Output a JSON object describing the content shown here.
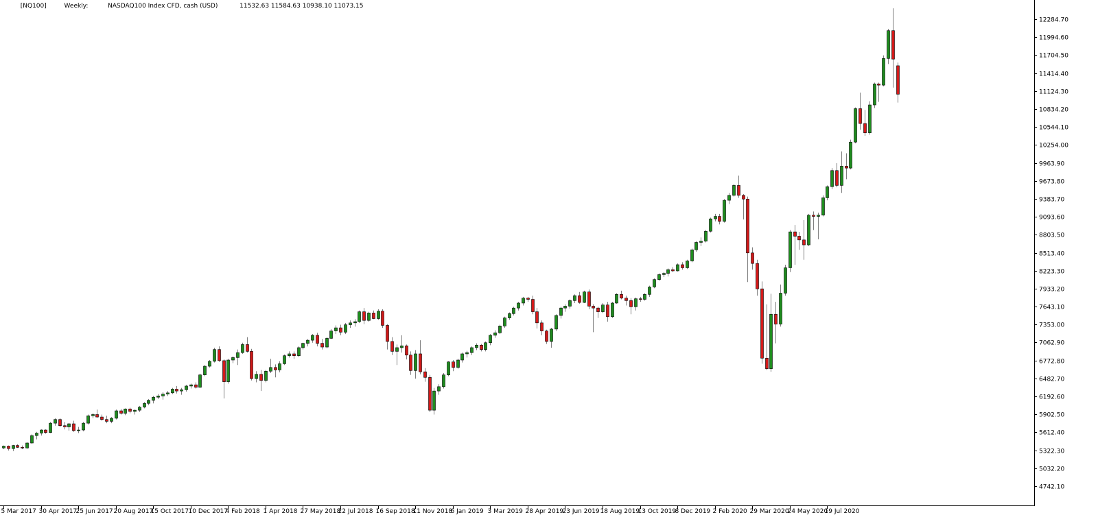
{
  "header": {
    "symbol": "[NQ100]",
    "timeframe": "Weekly:",
    "description": "NASDAQ100 Index CFD, cash (USD)",
    "ohlc": "11532.63 11584.63 10938.10 11073.15"
  },
  "colors": {
    "bull_fill": "#1e8c1e",
    "bear_fill": "#d21919",
    "candle_outline": "#000000",
    "wick": "#7f7f7f",
    "axis": "#000000",
    "background": "#ffffff"
  },
  "chart_data": {
    "type": "candlestick",
    "title": "",
    "xlabel": "",
    "ylabel": "",
    "grid": false,
    "ylim": [
      4600,
      12450
    ],
    "y_ticks": [
      "12284.70",
      "11994.60",
      "11704.50",
      "11414.40",
      "11124.30",
      "10834.20",
      "10544.10",
      "10254.00",
      "9963.90",
      "9673.80",
      "9383.70",
      "9093.60",
      "8803.50",
      "8513.40",
      "8223.30",
      "7933.20",
      "7643.10",
      "7353.00",
      "7062.90",
      "6772.80",
      "6482.70",
      "6192.60",
      "5902.50",
      "5612.40",
      "5322.30",
      "5032.20",
      "4742.10"
    ],
    "x_ticks": [
      {
        "label": "5 Mar 2017",
        "index": 0
      },
      {
        "label": "30 Apr 2017",
        "index": 8
      },
      {
        "label": "25 Jun 2017",
        "index": 16
      },
      {
        "label": "20 Aug 2017",
        "index": 24
      },
      {
        "label": "15 Oct 2017",
        "index": 32
      },
      {
        "label": "10 Dec 2017",
        "index": 40
      },
      {
        "label": "4 Feb 2018",
        "index": 48
      },
      {
        "label": "1 Apr 2018",
        "index": 56
      },
      {
        "label": "27 May 2018",
        "index": 64
      },
      {
        "label": "22 Jul 2018",
        "index": 72
      },
      {
        "label": "16 Sep 2018",
        "index": 80
      },
      {
        "label": "11 Nov 2018",
        "index": 88
      },
      {
        "label": "6 Jan 2019",
        "index": 96
      },
      {
        "label": "3 Mar 2019",
        "index": 104
      },
      {
        "label": "28 Apr 2019",
        "index": 112
      },
      {
        "label": "23 Jun 2019",
        "index": 120
      },
      {
        "label": "18 Aug 2019",
        "index": 128
      },
      {
        "label": "13 Oct 2019",
        "index": 136
      },
      {
        "label": "8 Dec 2019",
        "index": 144
      },
      {
        "label": "2 Feb 2020",
        "index": 152
      },
      {
        "label": "29 Mar 2020",
        "index": 160
      },
      {
        "label": "24 May 2020",
        "index": 168
      },
      {
        "label": "19 Jul 2020",
        "index": 176
      }
    ],
    "candles": [
      [
        5360,
        5400,
        5340,
        5390
      ],
      [
        5390,
        5400,
        5320,
        5350
      ],
      [
        5350,
        5410,
        5310,
        5400
      ],
      [
        5400,
        5420,
        5360,
        5370
      ],
      [
        5370,
        5400,
        5340,
        5360
      ],
      [
        5360,
        5450,
        5350,
        5440
      ],
      [
        5440,
        5580,
        5430,
        5560
      ],
      [
        5560,
        5620,
        5500,
        5600
      ],
      [
        5600,
        5660,
        5560,
        5650
      ],
      [
        5650,
        5660,
        5590,
        5610
      ],
      [
        5610,
        5780,
        5600,
        5760
      ],
      [
        5760,
        5840,
        5720,
        5820
      ],
      [
        5820,
        5840,
        5700,
        5720
      ],
      [
        5720,
        5780,
        5660,
        5700
      ],
      [
        5700,
        5760,
        5640,
        5750
      ],
      [
        5750,
        5800,
        5620,
        5640
      ],
      [
        5640,
        5700,
        5600,
        5650
      ],
      [
        5650,
        5780,
        5630,
        5760
      ],
      [
        5760,
        5900,
        5740,
        5880
      ],
      [
        5880,
        5920,
        5840,
        5900
      ],
      [
        5900,
        5980,
        5850,
        5860
      ],
      [
        5860,
        5900,
        5800,
        5820
      ],
      [
        5820,
        5880,
        5760,
        5790
      ],
      [
        5790,
        5860,
        5760,
        5840
      ],
      [
        5840,
        5980,
        5820,
        5960
      ],
      [
        5960,
        5990,
        5900,
        5920
      ],
      [
        5920,
        6000,
        5890,
        5990
      ],
      [
        5990,
        6010,
        5920,
        5950
      ],
      [
        5950,
        5980,
        5900,
        5970
      ],
      [
        5970,
        6040,
        5940,
        6020
      ],
      [
        6020,
        6100,
        6000,
        6080
      ],
      [
        6080,
        6150,
        6050,
        6130
      ],
      [
        6130,
        6200,
        6080,
        6180
      ],
      [
        6180,
        6230,
        6150,
        6200
      ],
      [
        6200,
        6260,
        6140,
        6230
      ],
      [
        6230,
        6280,
        6200,
        6250
      ],
      [
        6250,
        6330,
        6230,
        6310
      ],
      [
        6310,
        6360,
        6240,
        6280
      ],
      [
        6280,
        6330,
        6220,
        6300
      ],
      [
        6300,
        6380,
        6270,
        6360
      ],
      [
        6360,
        6400,
        6320,
        6380
      ],
      [
        6380,
        6420,
        6320,
        6340
      ],
      [
        6340,
        6560,
        6330,
        6540
      ],
      [
        6540,
        6700,
        6520,
        6680
      ],
      [
        6680,
        6780,
        6660,
        6760
      ],
      [
        6760,
        6980,
        6740,
        6950
      ],
      [
        6950,
        7000,
        6750,
        6770
      ],
      [
        6770,
        6790,
        6160,
        6430
      ],
      [
        6430,
        6800,
        6400,
        6780
      ],
      [
        6780,
        6840,
        6730,
        6820
      ],
      [
        6820,
        6950,
        6700,
        6900
      ],
      [
        6900,
        7060,
        6880,
        7030
      ],
      [
        7030,
        7150,
        6900,
        6920
      ],
      [
        6920,
        6960,
        6450,
        6480
      ],
      [
        6480,
        6600,
        6420,
        6550
      ],
      [
        6550,
        6620,
        6280,
        6450
      ],
      [
        6450,
        6620,
        6420,
        6600
      ],
      [
        6600,
        6800,
        6570,
        6660
      ],
      [
        6660,
        6710,
        6500,
        6620
      ],
      [
        6620,
        6760,
        6580,
        6720
      ],
      [
        6720,
        6870,
        6700,
        6850
      ],
      [
        6850,
        6920,
        6820,
        6880
      ],
      [
        6880,
        6920,
        6800,
        6850
      ],
      [
        6850,
        7000,
        6830,
        6980
      ],
      [
        6980,
        7060,
        6950,
        7050
      ],
      [
        7050,
        7120,
        7000,
        7100
      ],
      [
        7100,
        7200,
        7060,
        7180
      ],
      [
        7180,
        7220,
        7000,
        7050
      ],
      [
        7050,
        7120,
        6950,
        6990
      ],
      [
        6990,
        7150,
        6970,
        7130
      ],
      [
        7130,
        7280,
        7120,
        7250
      ],
      [
        7250,
        7340,
        7200,
        7300
      ],
      [
        7300,
        7350,
        7180,
        7230
      ],
      [
        7230,
        7380,
        7200,
        7350
      ],
      [
        7350,
        7420,
        7300,
        7380
      ],
      [
        7380,
        7440,
        7320,
        7400
      ],
      [
        7400,
        7580,
        7380,
        7560
      ],
      [
        7560,
        7620,
        7360,
        7420
      ],
      [
        7420,
        7560,
        7400,
        7540
      ],
      [
        7540,
        7580,
        7440,
        7450
      ],
      [
        7450,
        7600,
        7430,
        7570
      ],
      [
        7570,
        7600,
        7300,
        7340
      ],
      [
        7340,
        7360,
        6950,
        7080
      ],
      [
        7080,
        7150,
        6860,
        6920
      ],
      [
        6920,
        7030,
        6700,
        6980
      ],
      [
        6980,
        7180,
        6900,
        7010
      ],
      [
        7010,
        7030,
        6790,
        6860
      ],
      [
        6860,
        6920,
        6540,
        6610
      ],
      [
        6610,
        6940,
        6480,
        6880
      ],
      [
        6880,
        7100,
        6550,
        6590
      ],
      [
        6590,
        6650,
        6430,
        6500
      ],
      [
        6500,
        6540,
        5940,
        5970
      ],
      [
        5970,
        6330,
        5900,
        6280
      ],
      [
        6280,
        6390,
        6220,
        6350
      ],
      [
        6350,
        6570,
        6320,
        6540
      ],
      [
        6540,
        6760,
        6520,
        6750
      ],
      [
        6750,
        6780,
        6600,
        6660
      ],
      [
        6660,
        6800,
        6640,
        6780
      ],
      [
        6780,
        6900,
        6740,
        6880
      ],
      [
        6880,
        6930,
        6820,
        6900
      ],
      [
        6900,
        7000,
        6860,
        6980
      ],
      [
        6980,
        7050,
        6940,
        7020
      ],
      [
        7020,
        7040,
        6920,
        6950
      ],
      [
        6950,
        7080,
        6920,
        7060
      ],
      [
        7060,
        7200,
        7020,
        7180
      ],
      [
        7180,
        7260,
        7140,
        7220
      ],
      [
        7220,
        7350,
        7200,
        7330
      ],
      [
        7330,
        7480,
        7300,
        7460
      ],
      [
        7460,
        7550,
        7430,
        7530
      ],
      [
        7530,
        7640,
        7500,
        7620
      ],
      [
        7620,
        7720,
        7580,
        7700
      ],
      [
        7700,
        7800,
        7660,
        7780
      ],
      [
        7780,
        7800,
        7720,
        7760
      ],
      [
        7760,
        7820,
        7520,
        7560
      ],
      [
        7560,
        7620,
        7290,
        7380
      ],
      [
        7380,
        7420,
        7180,
        7250
      ],
      [
        7250,
        7270,
        7040,
        7080
      ],
      [
        7080,
        7300,
        6980,
        7280
      ],
      [
        7280,
        7520,
        7250,
        7500
      ],
      [
        7500,
        7640,
        7450,
        7620
      ],
      [
        7620,
        7680,
        7560,
        7650
      ],
      [
        7650,
        7760,
        7610,
        7740
      ],
      [
        7740,
        7840,
        7700,
        7820
      ],
      [
        7820,
        7880,
        7690,
        7710
      ],
      [
        7710,
        7900,
        7700,
        7880
      ],
      [
        7880,
        7920,
        7600,
        7650
      ],
      [
        7650,
        7680,
        7230,
        7620
      ],
      [
        7620,
        7640,
        7460,
        7560
      ],
      [
        7560,
        7700,
        7540,
        7670
      ],
      [
        7670,
        7720,
        7400,
        7480
      ],
      [
        7480,
        7720,
        7460,
        7700
      ],
      [
        7700,
        7860,
        7690,
        7840
      ],
      [
        7840,
        7900,
        7760,
        7780
      ],
      [
        7780,
        7820,
        7660,
        7740
      ],
      [
        7740,
        7780,
        7520,
        7640
      ],
      [
        7640,
        7790,
        7580,
        7770
      ],
      [
        7770,
        7800,
        7720,
        7760
      ],
      [
        7760,
        7860,
        7740,
        7840
      ],
      [
        7840,
        7980,
        7800,
        7960
      ],
      [
        7960,
        8100,
        7940,
        8080
      ],
      [
        8080,
        8180,
        8060,
        8160
      ],
      [
        8160,
        8200,
        8120,
        8180
      ],
      [
        8180,
        8260,
        8130,
        8240
      ],
      [
        8240,
        8280,
        8200,
        8220
      ],
      [
        8220,
        8340,
        8210,
        8320
      ],
      [
        8320,
        8360,
        8240,
        8270
      ],
      [
        8270,
        8400,
        8250,
        8380
      ],
      [
        8380,
        8580,
        8360,
        8560
      ],
      [
        8560,
        8700,
        8530,
        8680
      ],
      [
        8680,
        8760,
        8620,
        8700
      ],
      [
        8700,
        8880,
        8680,
        8860
      ],
      [
        8860,
        9080,
        8840,
        9060
      ],
      [
        9060,
        9140,
        9020,
        9100
      ],
      [
        9100,
        9140,
        8970,
        9020
      ],
      [
        9020,
        9380,
        9000,
        9360
      ],
      [
        9360,
        9480,
        9300,
        9440
      ],
      [
        9440,
        9620,
        9420,
        9600
      ],
      [
        9600,
        9760,
        9400,
        9440
      ],
      [
        9440,
        9460,
        9050,
        9380
      ],
      [
        9380,
        9420,
        8040,
        8510
      ],
      [
        8510,
        8600,
        8240,
        8340
      ],
      [
        8340,
        8400,
        7820,
        7930
      ],
      [
        7930,
        8050,
        6720,
        6810
      ],
      [
        6810,
        7680,
        6620,
        6640
      ],
      [
        6640,
        7850,
        6590,
        7520
      ],
      [
        7520,
        7720,
        7050,
        7360
      ],
      [
        7360,
        8000,
        7320,
        7860
      ],
      [
        7860,
        8320,
        7820,
        8270
      ],
      [
        8270,
        8880,
        8200,
        8850
      ],
      [
        8850,
        8960,
        8320,
        8780
      ],
      [
        8780,
        8850,
        8560,
        8720
      ],
      [
        8720,
        9040,
        8400,
        8640
      ],
      [
        8640,
        9140,
        8620,
        9120
      ],
      [
        9120,
        9180,
        8880,
        9100
      ],
      [
        9100,
        9160,
        8730,
        9120
      ],
      [
        9120,
        9440,
        9100,
        9400
      ],
      [
        9400,
        9600,
        9360,
        9580
      ],
      [
        9580,
        9880,
        9540,
        9840
      ],
      [
        9840,
        9960,
        9570,
        9600
      ],
      [
        9600,
        10150,
        9480,
        9910
      ],
      [
        9910,
        10120,
        9700,
        9880
      ],
      [
        9880,
        10340,
        9860,
        10300
      ],
      [
        10300,
        10860,
        10280,
        10840
      ],
      [
        10840,
        11100,
        10500,
        10600
      ],
      [
        10600,
        10820,
        10400,
        10450
      ],
      [
        10450,
        10960,
        10420,
        10900
      ],
      [
        10900,
        11260,
        10850,
        11240
      ],
      [
        11240,
        11260,
        10950,
        11220
      ],
      [
        11220,
        11700,
        11200,
        11650
      ],
      [
        11650,
        12130,
        11560,
        12100
      ],
      [
        12100,
        12460,
        11180,
        11640
      ],
      [
        11532.63,
        11584.63,
        10938.1,
        11073.15
      ]
    ]
  }
}
